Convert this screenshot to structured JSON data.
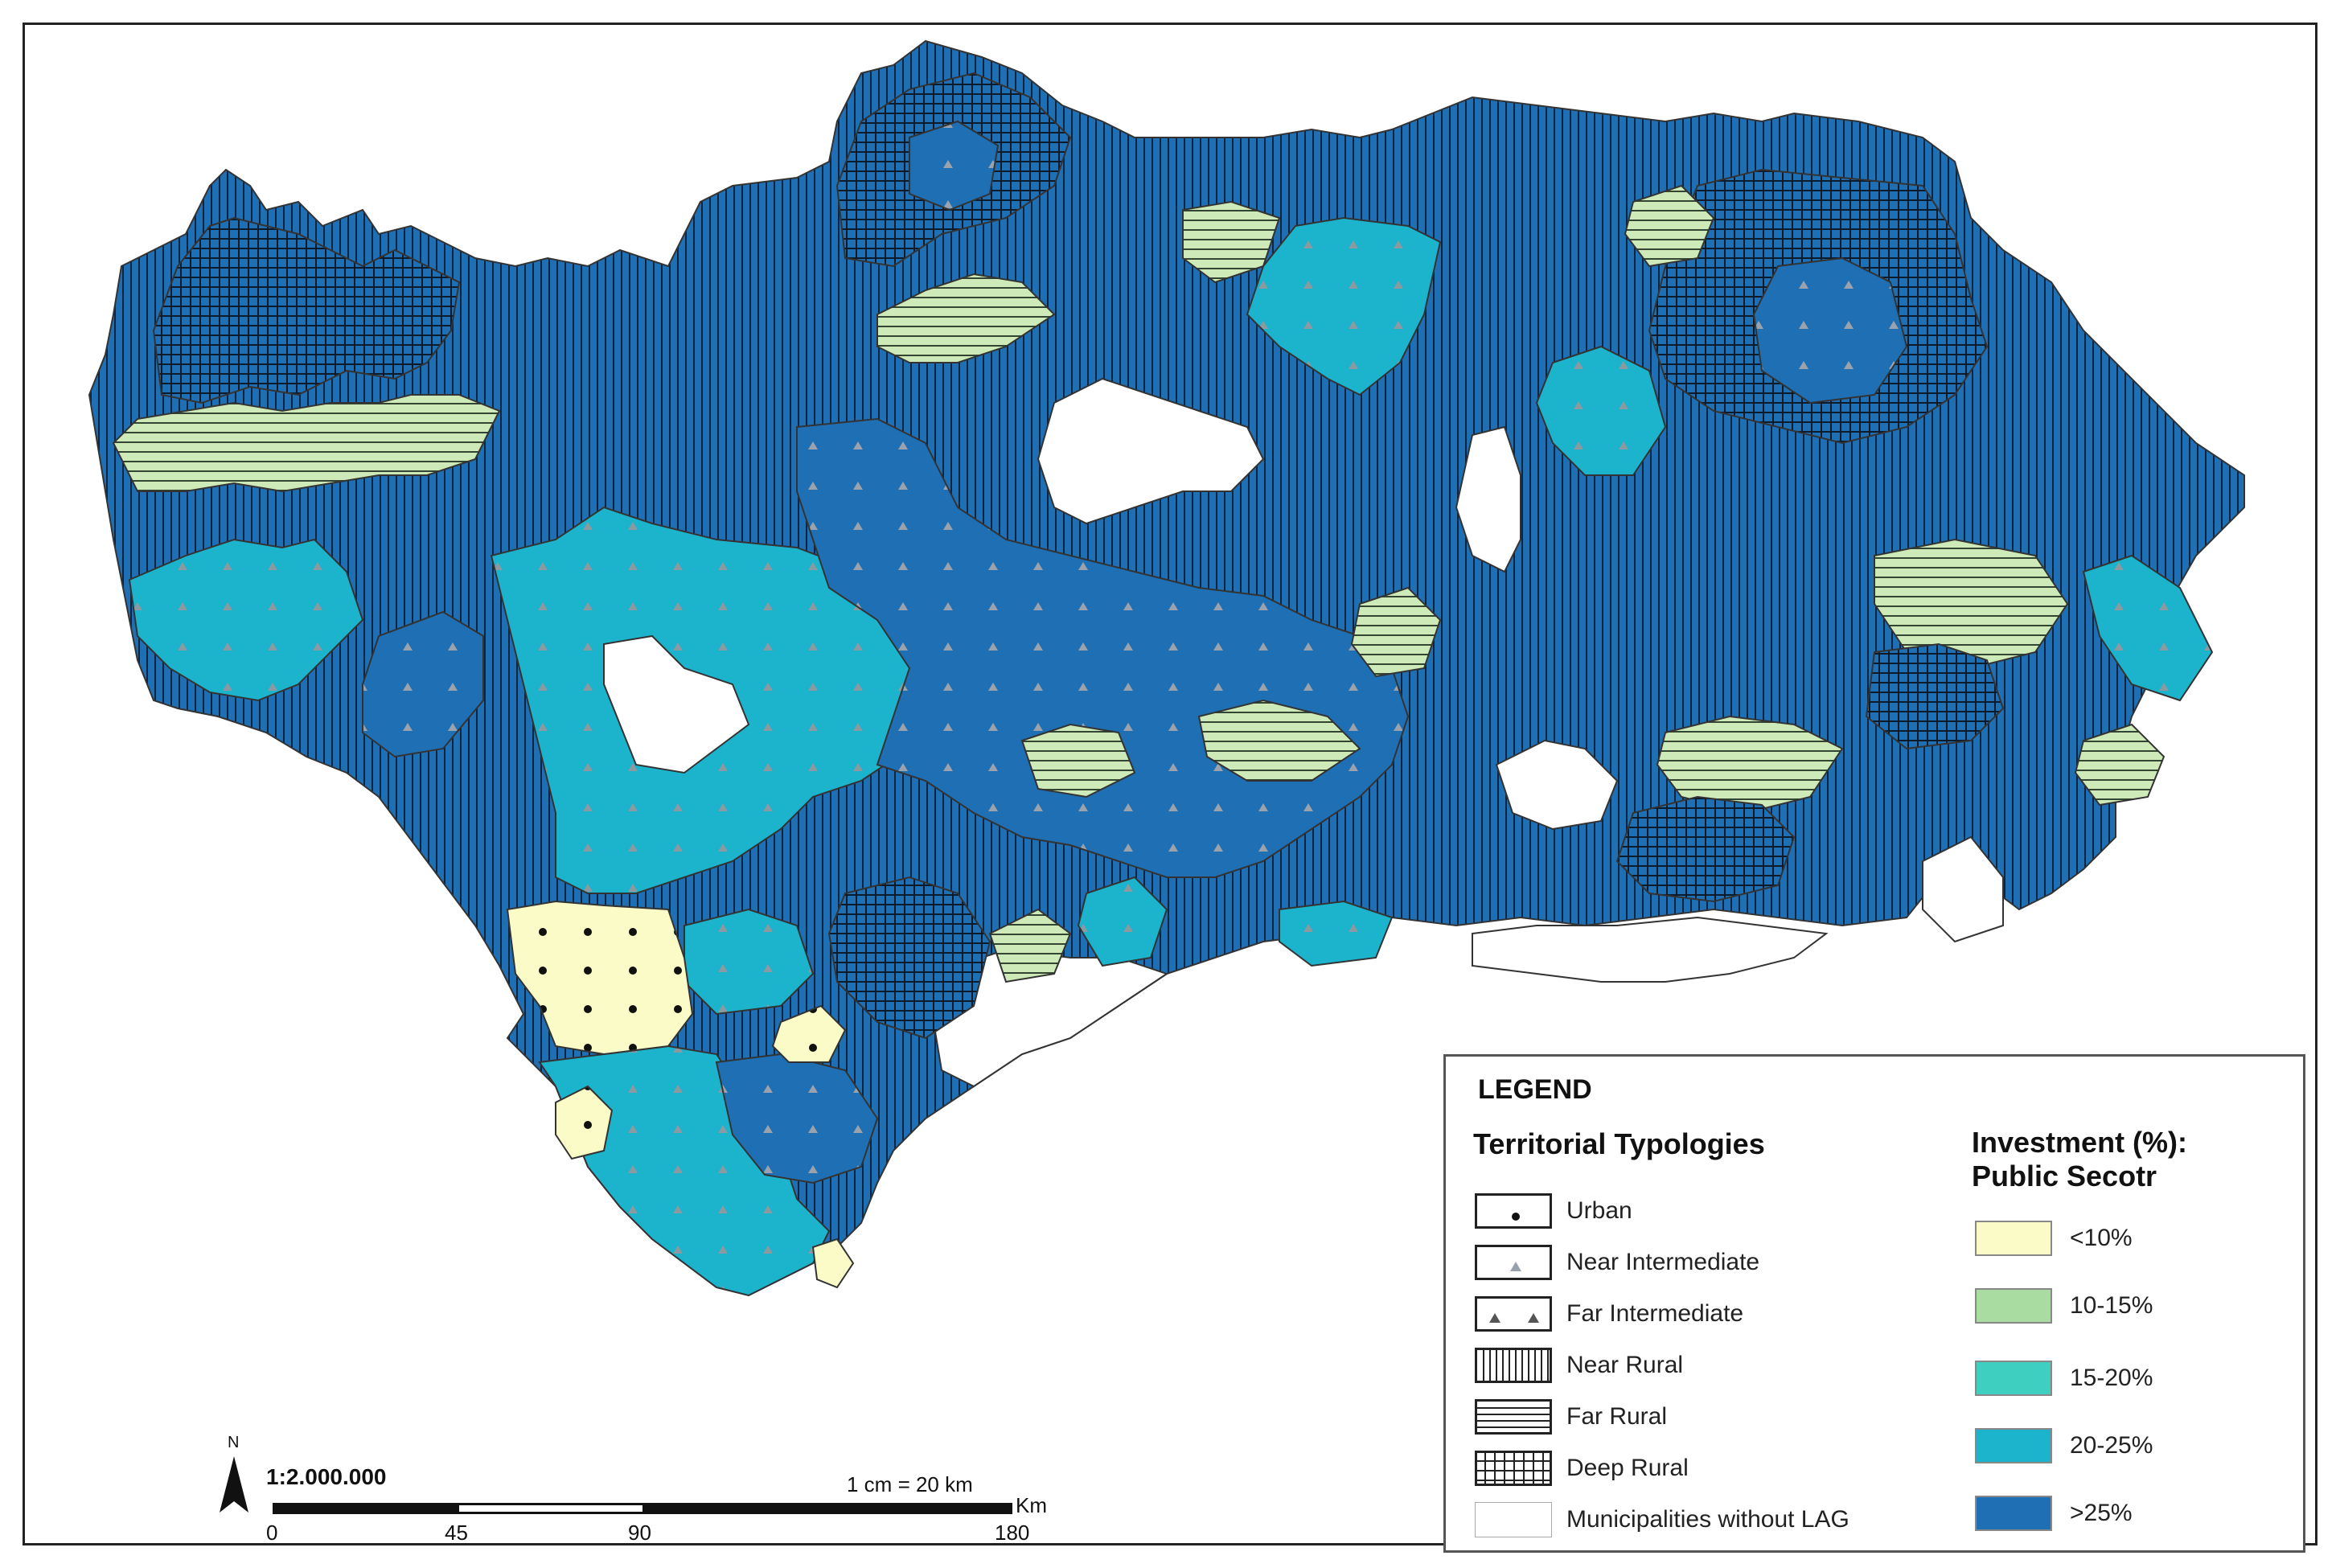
{
  "legend": {
    "title": "LEGEND",
    "typologies_title": "Territorial Typologies",
    "typologies": [
      {
        "label": "Urban",
        "pattern": "urban"
      },
      {
        "label": "Near Intermediate",
        "pattern": "near-intermediate"
      },
      {
        "label": "Far Intermediate",
        "pattern": "far-intermediate"
      },
      {
        "label": "Near Rural",
        "pattern": "near-rural"
      },
      {
        "label": "Far Rural",
        "pattern": "far-rural"
      },
      {
        "label": "Deep Rural",
        "pattern": "deep-rural"
      },
      {
        "label": "Municipalities without LAG",
        "pattern": "none"
      }
    ],
    "investment_title_1": "Investment (%):",
    "investment_title_2": "Public Secotr",
    "investment_classes": [
      {
        "label": "<10%",
        "color": "#fbfbc8"
      },
      {
        "label": "10-15%",
        "color": "#a8dca0"
      },
      {
        "label": "15-20%",
        "color": "#3fcfc0"
      },
      {
        "label": "20-25%",
        "color": "#1cb4cc"
      },
      {
        "label": ">25%",
        "color": "#1f6fb5"
      }
    ]
  },
  "scale": {
    "ratio": "1:2.000.000",
    "equivalence": "1 cm = 20 km",
    "ticks": [
      "0",
      "45",
      "90",
      "180"
    ],
    "unit": "Km",
    "north": "N"
  },
  "colors": {
    "urban": "#fbfbc8",
    "far_rural_fill": "#cdeab8",
    "near_intermediate": "#1cb4cc",
    "far_intermediate": "#1f6fb5",
    "near_rural": "#1f6fb5",
    "deep_rural": "#1f6fb5",
    "no_lag": "#ffffff"
  }
}
